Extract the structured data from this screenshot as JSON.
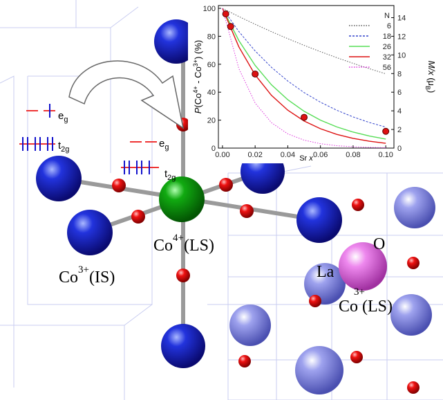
{
  "chart_data": {
    "type": "line",
    "xlabel": [
      "Sr ",
      "x"
    ],
    "ylabel": [
      "P",
      "(Co",
      "4+",
      " - Co",
      "3+",
      ") (%)"
    ],
    "y2label": [
      "M/x",
      " (μ",
      "B",
      ")"
    ],
    "xlim": [
      -0.0025,
      0.105
    ],
    "xticks": [
      {
        "value": 0,
        "label": "0.00"
      },
      {
        "value": 0.02,
        "label": "0.02"
      },
      {
        "value": 0.04,
        "label": "0.04"
      },
      {
        "value": 0.06,
        "label": "0.06"
      },
      {
        "value": 0.08,
        "label": "0.08"
      },
      {
        "value": 0.1,
        "label": "0.10"
      }
    ],
    "ylim": [
      0,
      102
    ],
    "yticks": [
      0,
      20,
      40,
      60,
      80,
      100
    ],
    "y2lim": [
      0,
      15.3
    ],
    "y2ticks": [
      0,
      2,
      4,
      6,
      8,
      10,
      12,
      14
    ],
    "legend_title": "N",
    "legend_position": "upper right",
    "x": [
      0,
      0.01,
      0.02,
      0.03,
      0.04,
      0.05,
      0.06,
      0.07,
      0.08,
      0.09,
      0.1
    ],
    "series": [
      {
        "name": "6",
        "color": "#555555",
        "dash": "1.5,2",
        "values": [
          100,
          94.15,
          88.58,
          83.3,
          78.28,
          73.51,
          68.99,
          64.7,
          60.64,
          56.79,
          53.14
        ]
      },
      {
        "name": "18",
        "color": "#3344cc",
        "dash": "3,2",
        "values": [
          100,
          83.45,
          69.51,
          57.8,
          47.97,
          39.72,
          32.84,
          27.08,
          22.3,
          18.31,
          15.01
        ]
      },
      {
        "name": "26",
        "color": "#55dd55",
        "dash": "",
        "values": [
          100,
          77.0,
          59.18,
          45.29,
          34.6,
          26.36,
          20.0,
          15.17,
          11.46,
          8.62,
          6.46
        ]
      },
      {
        "name": "32",
        "color": "#dd1111",
        "dash": "",
        "values": [
          100,
          72.5,
          52.38,
          37.74,
          27.11,
          19.37,
          13.85,
          9.81,
          6.94,
          4.9,
          3.43
        ]
      },
      {
        "name": "56",
        "color": "#dd33dd",
        "dash": "1.5,2",
        "values": [
          100,
          56.97,
          32.28,
          18.18,
          10.19,
          5.69,
          3.14,
          1.72,
          0.94,
          0.51,
          0.27
        ]
      }
    ],
    "points": {
      "color": "#dd1111",
      "x": [
        0.002,
        0.005,
        0.02,
        0.05,
        0.1
      ],
      "values": [
        96,
        87,
        53,
        22,
        12
      ]
    }
  },
  "illustration": {
    "eg_left": {
      "main": "e",
      "sub": "g"
    },
    "t2g_left": {
      "main": "t",
      "sub": "2g"
    },
    "eg_right": {
      "main": "e",
      "sub": "g"
    },
    "t2g_right": {
      "main": "t",
      "sub": "2g"
    },
    "co4": {
      "main": "Co",
      "sup": "4+",
      "tail": "(LS)"
    },
    "co3is": {
      "main": "Co",
      "sup": "3+",
      "tail": "(IS)"
    },
    "la": "La",
    "o": "O",
    "co3ls": {
      "sup": "3+",
      "main": "Co (LS)"
    }
  }
}
